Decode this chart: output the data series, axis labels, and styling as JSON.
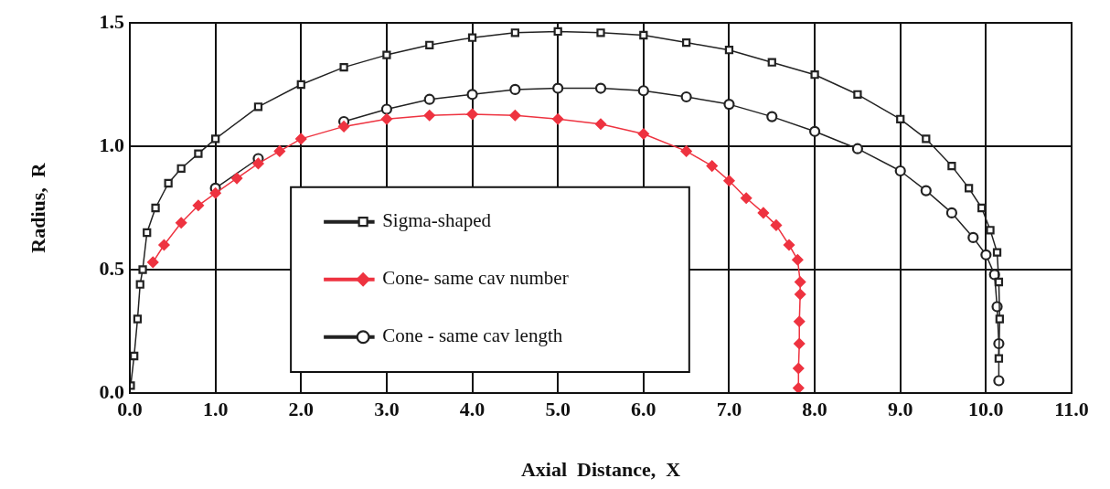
{
  "chart_data": {
    "type": "line",
    "xlabel": "Axial  Distance,  X",
    "ylabel": "Radius,  R",
    "xlim": [
      0,
      11
    ],
    "xticks": [
      {
        "value": 0,
        "label": "0.0"
      },
      {
        "value": 1,
        "label": "1.0"
      },
      {
        "value": 2,
        "label": "2.0"
      },
      {
        "value": 3,
        "label": "3.0"
      },
      {
        "value": 4,
        "label": "4.0"
      },
      {
        "value": 5,
        "label": "5.0"
      },
      {
        "value": 6,
        "label": "6.0"
      },
      {
        "value": 7,
        "label": "7.0"
      },
      {
        "value": 8,
        "label": "8.0"
      },
      {
        "value": 9,
        "label": "9.0"
      },
      {
        "value": 10,
        "label": "10.0"
      },
      {
        "value": 11,
        "label": "11.0"
      }
    ],
    "ylim": [
      0,
      1.5
    ],
    "yticks": [
      {
        "value": 0,
        "label": "0.0"
      },
      {
        "value": 0.5,
        "label": "0.5"
      },
      {
        "value": 1,
        "label": "1.0"
      },
      {
        "value": 1.5,
        "label": "1.5"
      }
    ],
    "grid": true,
    "legend": "bottom left",
    "series": [
      {
        "name": "Sigma-shaped",
        "color": "#222222",
        "marker": "square",
        "x": [
          0.01,
          0.05,
          0.09,
          0.12,
          0.15,
          0.2,
          0.3,
          0.45,
          0.6,
          0.8,
          1.0,
          1.5,
          2.0,
          2.5,
          3.0,
          3.5,
          4.0,
          4.5,
          5.0,
          5.5,
          6.0,
          6.5,
          7.0,
          7.5,
          8.0,
          8.5,
          9.0,
          9.3,
          9.6,
          9.8,
          9.95,
          10.05,
          10.13,
          10.15,
          10.16,
          10.15
        ],
        "values": [
          0.03,
          0.15,
          0.3,
          0.44,
          0.5,
          0.65,
          0.75,
          0.85,
          0.91,
          0.97,
          1.03,
          1.16,
          1.25,
          1.32,
          1.37,
          1.41,
          1.44,
          1.46,
          1.465,
          1.46,
          1.45,
          1.42,
          1.39,
          1.34,
          1.29,
          1.21,
          1.11,
          1.03,
          0.92,
          0.83,
          0.75,
          0.66,
          0.57,
          0.45,
          0.3,
          0.14
        ]
      },
      {
        "name": "Cone- same cav number",
        "color": "#ee3340",
        "marker": "diamond",
        "x": [
          0.27,
          0.4,
          0.6,
          0.8,
          1.0,
          1.25,
          1.5,
          1.75,
          2.0,
          2.5,
          3.0,
          3.5,
          4.0,
          4.5,
          5.0,
          5.5,
          6.0,
          6.5,
          6.8,
          7.0,
          7.2,
          7.4,
          7.55,
          7.7,
          7.8,
          7.83,
          7.83,
          7.82,
          7.82,
          7.81,
          7.81
        ],
        "values": [
          0.53,
          0.6,
          0.69,
          0.76,
          0.81,
          0.87,
          0.93,
          0.98,
          1.03,
          1.08,
          1.11,
          1.125,
          1.13,
          1.125,
          1.11,
          1.09,
          1.05,
          0.98,
          0.92,
          0.86,
          0.79,
          0.73,
          0.68,
          0.6,
          0.54,
          0.45,
          0.4,
          0.29,
          0.2,
          0.1,
          0.02
        ]
      },
      {
        "name": "Cone - same cav length",
        "color": "#222222",
        "marker": "circle",
        "x": [
          1.0,
          1.5,
          2.0,
          2.5,
          3.0,
          3.5,
          4.0,
          4.5,
          5.0,
          5.5,
          6.0,
          6.5,
          7.0,
          7.5,
          8.0,
          8.5,
          9.0,
          9.3,
          9.6,
          9.85,
          10.0,
          10.1,
          10.13,
          10.15,
          10.15
        ],
        "values": [
          0.83,
          0.95,
          null,
          1.1,
          1.15,
          1.19,
          1.21,
          1.23,
          1.235,
          1.235,
          1.225,
          1.2,
          1.17,
          1.12,
          1.06,
          0.99,
          0.9,
          0.82,
          0.73,
          0.63,
          0.56,
          0.48,
          0.35,
          0.2,
          0.05
        ]
      }
    ]
  }
}
